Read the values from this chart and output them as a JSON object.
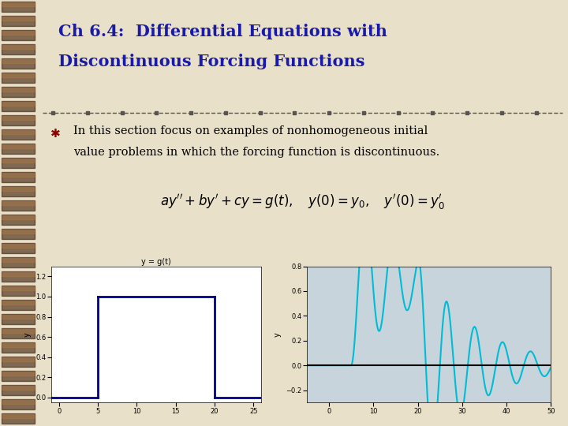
{
  "title_line1": "Ch 6.4:  Differential Equations with",
  "title_line2": "Discontinuous Forcing Functions",
  "title_color": "#1a1aaa",
  "bg_color": "#e8e0c8",
  "left_strip_color": "#6b3a1f",
  "bullet_text_line1": "In this section focus on examples of nonhomogeneous initial",
  "bullet_text_line2": "value problems in which the forcing function is discontinuous.",
  "plot1_title": "y = g(t)",
  "plot1_xlim": [
    -1,
    26
  ],
  "plot1_ylim": [
    -0.05,
    1.3
  ],
  "plot1_yticks": [
    0.0,
    0.2,
    0.4,
    0.6,
    0.8,
    1.0,
    1.2
  ],
  "plot1_xticks": [
    0,
    5,
    10,
    15,
    20,
    25
  ],
  "plot2_xlim": [
    -5,
    50
  ],
  "plot2_ylim": [
    -0.3,
    0.75
  ],
  "plot2_yticks": [
    -0.2,
    0.0,
    0.2,
    0.4,
    0.6,
    0.8
  ],
  "plot2_xticks": [
    0,
    10,
    20,
    30,
    40,
    50
  ],
  "separator_color": "#555555",
  "line_color_plot1": "#00008B",
  "line_color_plot2": "#00bcd4",
  "plot2_bg": "#c8d4dc"
}
